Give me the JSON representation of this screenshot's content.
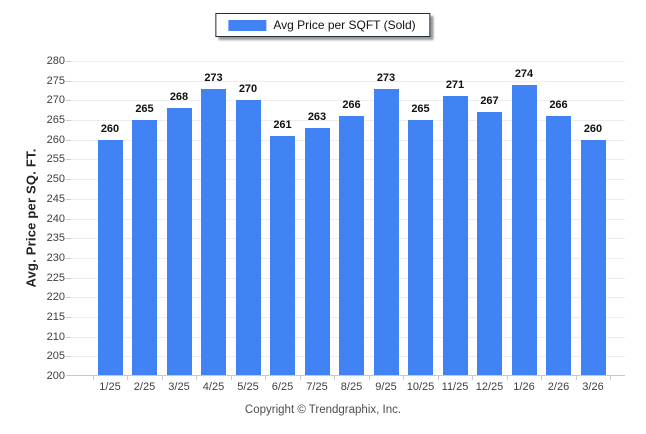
{
  "legend": {
    "label": "Avg Price per SQFT (Sold)",
    "swatch_color": "#4183f4"
  },
  "y_axis": {
    "title": "Avg. Price per SQ. FT.",
    "min": 200,
    "max": 280,
    "step": 5
  },
  "footer": {
    "text": "Copyright © Trendgraphix, Inc."
  },
  "chart_data": {
    "type": "bar",
    "title": "",
    "series_name": "Avg Price per SQFT (Sold)",
    "categories": [
      "1/25",
      "2/25",
      "3/25",
      "4/25",
      "5/25",
      "6/25",
      "7/25",
      "8/25",
      "9/25",
      "10/25",
      "11/25",
      "12/25",
      "1/26",
      "2/26",
      "3/26"
    ],
    "values": [
      260,
      265,
      268,
      273,
      270,
      261,
      263,
      266,
      273,
      265,
      271,
      267,
      274,
      266,
      260
    ],
    "xlabel": "",
    "ylabel": "Avg. Price per SQ. FT.",
    "ylim": [
      200,
      280
    ],
    "ytick_step": 5,
    "grid": true,
    "bar_color": "#4183f4",
    "value_labels": true,
    "legend_position": "top-center"
  }
}
